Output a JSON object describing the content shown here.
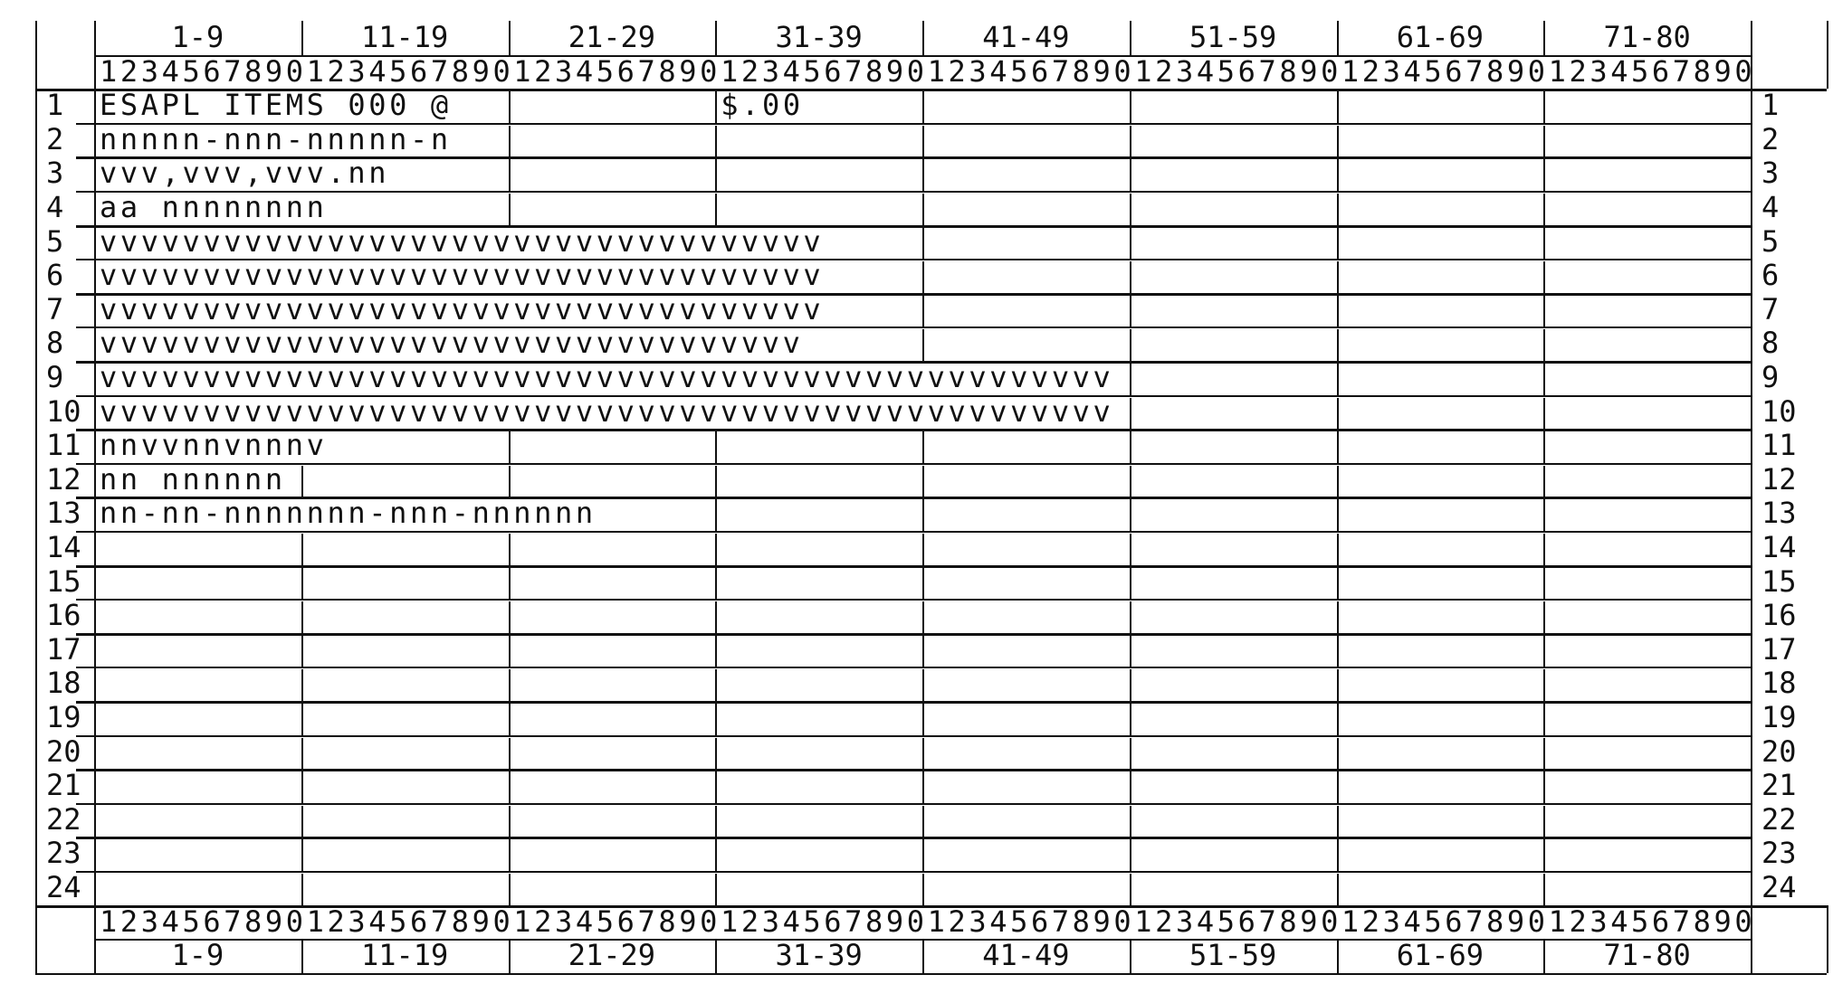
{
  "column_groups": [
    "1-9",
    "11-19",
    "21-29",
    "31-39",
    "41-49",
    "51-59",
    "61-69",
    "71-80"
  ],
  "digit_ruler": "12345678901234567890123456789012345678901234567890123456789012345678901234567890",
  "rows": [
    {
      "num": "1",
      "fields": [
        {
          "col": 1,
          "text": "ESAPL ITEMS 000 @"
        },
        {
          "col": 31,
          "text": "$.00"
        }
      ]
    },
    {
      "num": "2",
      "fields": [
        {
          "col": 1,
          "text": "nnnnn-nnn-nnnnn-n"
        }
      ]
    },
    {
      "num": "3",
      "fields": [
        {
          "col": 1,
          "text": "vvv,vvv,vvv.nn"
        }
      ]
    },
    {
      "num": "4",
      "fields": [
        {
          "col": 1,
          "text": "aa nnnnnnnn"
        }
      ]
    },
    {
      "num": "5",
      "fields": [
        {
          "col": 1,
          "text": "vvvvvvvvvvvvvvvvvvvvvvvvvvvvvvvvvvv"
        }
      ]
    },
    {
      "num": "6",
      "fields": [
        {
          "col": 1,
          "text": "vvvvvvvvvvvvvvvvvvvvvvvvvvvvvvvvvvv"
        }
      ]
    },
    {
      "num": "7",
      "fields": [
        {
          "col": 1,
          "text": "vvvvvvvvvvvvvvvvvvvvvvvvvvvvvvvvvvv"
        }
      ]
    },
    {
      "num": "8",
      "fields": [
        {
          "col": 1,
          "text": "vvvvvvvvvvvvvvvvvvvvvvvvvvvvvvvvvv"
        }
      ]
    },
    {
      "num": "9",
      "fields": [
        {
          "col": 1,
          "text": "vvvvvvvvvvvvvvvvvvvvvvvvvvvvvvvvvvvvvvvvvvvvvvvvv"
        }
      ]
    },
    {
      "num": "10",
      "fields": [
        {
          "col": 1,
          "text": "vvvvvvvvvvvvvvvvvvvvvvvvvvvvvvvvvvvvvvvvvvvvvvvvv"
        }
      ]
    },
    {
      "num": "11",
      "fields": [
        {
          "col": 1,
          "text": "nnvvnnvnnnv"
        }
      ]
    },
    {
      "num": "12",
      "fields": [
        {
          "col": 1,
          "text": "nn nnnnnn"
        }
      ]
    },
    {
      "num": "13",
      "fields": [
        {
          "col": 1,
          "text": "nn-nn-nnnnnnn-nnn-nnnnnn"
        }
      ]
    },
    {
      "num": "14",
      "fields": []
    },
    {
      "num": "15",
      "fields": []
    },
    {
      "num": "16",
      "fields": []
    },
    {
      "num": "17",
      "fields": []
    },
    {
      "num": "18",
      "fields": []
    },
    {
      "num": "19",
      "fields": []
    },
    {
      "num": "20",
      "fields": []
    },
    {
      "num": "21",
      "fields": []
    },
    {
      "num": "22",
      "fields": []
    },
    {
      "num": "23",
      "fields": []
    },
    {
      "num": "24",
      "fields": []
    }
  ]
}
